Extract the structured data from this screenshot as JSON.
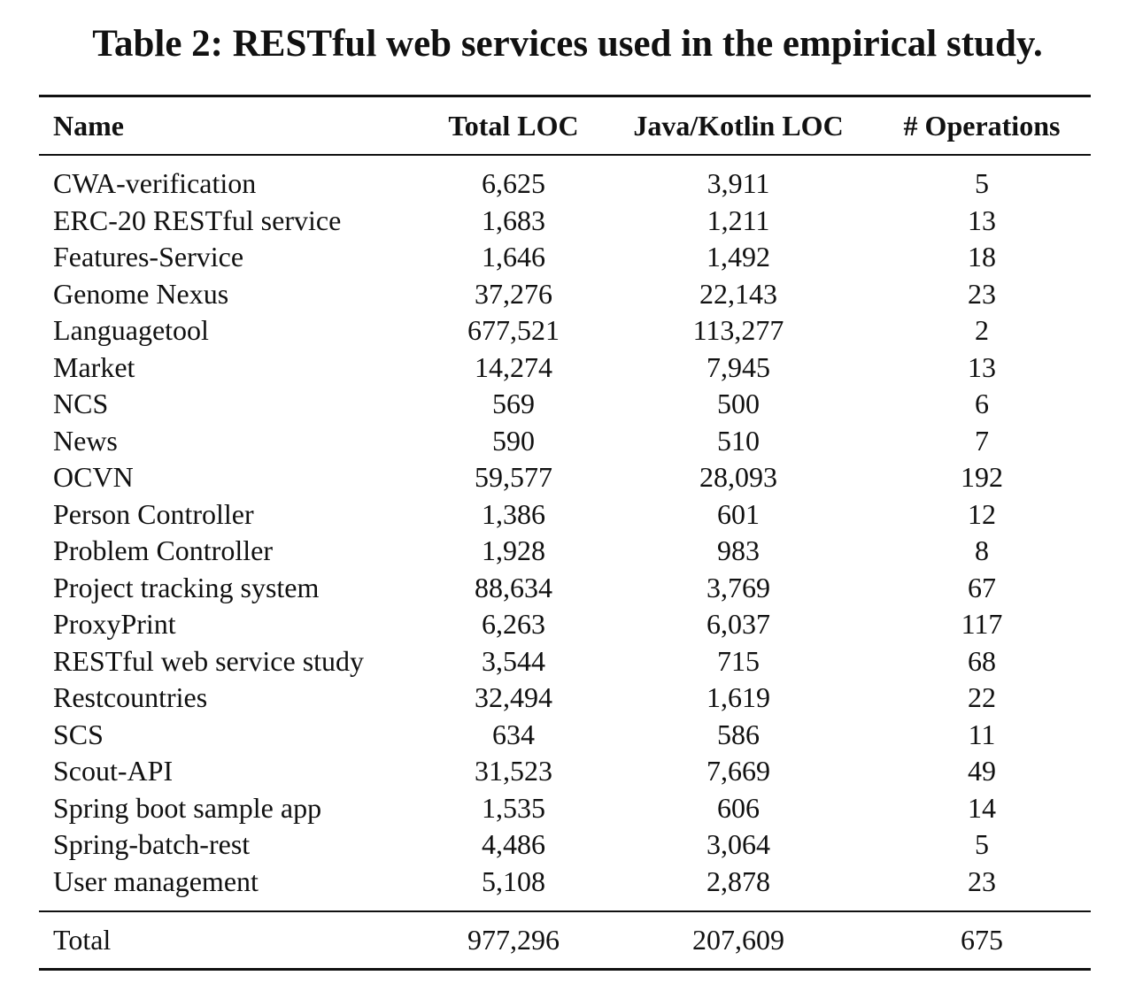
{
  "caption": "Table 2: RESTful web services used in the empirical study.",
  "table": {
    "headers": [
      "Name",
      "Total LOC",
      "Java/Kotlin LOC",
      "# Operations"
    ],
    "rows": [
      [
        "CWA-verification",
        "6,625",
        "3,911",
        "5"
      ],
      [
        "ERC-20 RESTful service",
        "1,683",
        "1,211",
        "13"
      ],
      [
        "Features-Service",
        "1,646",
        "1,492",
        "18"
      ],
      [
        "Genome Nexus",
        "37,276",
        "22,143",
        "23"
      ],
      [
        "Languagetool",
        "677,521",
        "113,277",
        "2"
      ],
      [
        "Market",
        "14,274",
        "7,945",
        "13"
      ],
      [
        "NCS",
        "569",
        "500",
        "6"
      ],
      [
        "News",
        "590",
        "510",
        "7"
      ],
      [
        "OCVN",
        "59,577",
        "28,093",
        "192"
      ],
      [
        "Person Controller",
        "1,386",
        "601",
        "12"
      ],
      [
        "Problem Controller",
        "1,928",
        "983",
        "8"
      ],
      [
        "Project tracking system",
        "88,634",
        "3,769",
        "67"
      ],
      [
        "ProxyPrint",
        "6,263",
        "6,037",
        "117"
      ],
      [
        "RESTful web service study",
        "3,544",
        "715",
        "68"
      ],
      [
        "Restcountries",
        "32,494",
        "1,619",
        "22"
      ],
      [
        "SCS",
        "634",
        "586",
        "11"
      ],
      [
        "Scout-API",
        "31,523",
        "7,669",
        "49"
      ],
      [
        "Spring boot sample app",
        "1,535",
        "606",
        "14"
      ],
      [
        "Spring-batch-rest",
        "4,486",
        "3,064",
        "5"
      ],
      [
        "User management",
        "5,108",
        "2,878",
        "23"
      ]
    ],
    "total": [
      "Total",
      "977,296",
      "207,609",
      "675"
    ]
  }
}
